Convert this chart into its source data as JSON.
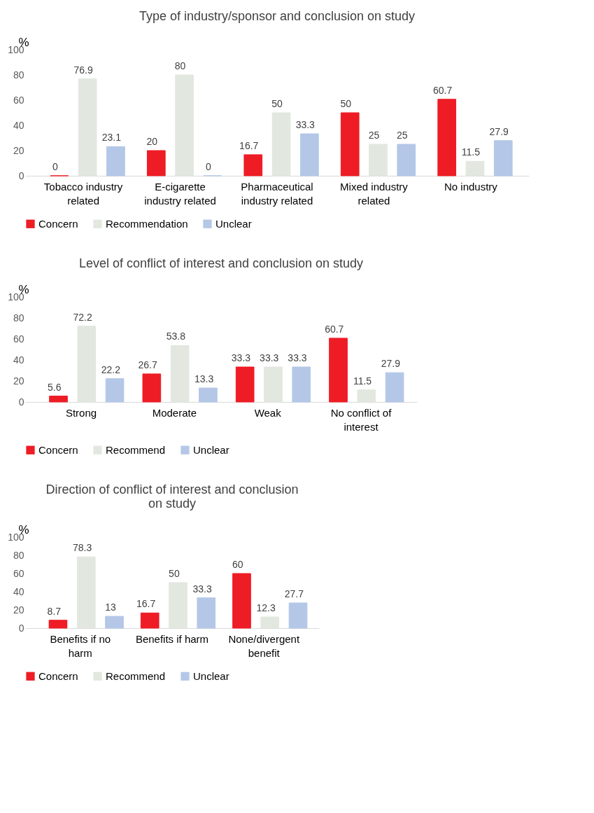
{
  "chart_data": [
    {
      "type": "bar",
      "title": "Type of industry/sponsor and conclusion on study",
      "ylabel": "%",
      "categories": [
        "Tobacco industry related",
        "E-cigarette industry related",
        "Pharmaceutical industry related",
        "Mixed industry related",
        "No industry"
      ],
      "series": [
        {
          "name": "Concern",
          "color": "#ee1c25",
          "values": [
            0,
            20,
            16.7,
            50,
            60.7
          ]
        },
        {
          "name": "Recommendation",
          "color": "#e2e8df",
          "values": [
            76.9,
            80,
            50,
            25,
            11.5
          ]
        },
        {
          "name": "Unclear",
          "color": "#b4c7e7",
          "values": [
            23.1,
            0,
            33.3,
            25,
            27.9
          ]
        }
      ],
      "ylim": [
        0,
        100
      ],
      "yticks": [
        0,
        20,
        40,
        60,
        80,
        100
      ],
      "data_labels": true,
      "legend": "bottom"
    },
    {
      "type": "bar",
      "title": "Level of conflict of interest and conclusion on study",
      "ylabel": "%",
      "categories": [
        "Strong",
        "Moderate",
        "Weak",
        "No conflict of interest"
      ],
      "series": [
        {
          "name": "Concern",
          "color": "#ee1c25",
          "values": [
            5.6,
            26.7,
            33.3,
            60.7
          ]
        },
        {
          "name": "Recommend",
          "color": "#e2e8df",
          "values": [
            72.2,
            53.8,
            33.3,
            11.5
          ]
        },
        {
          "name": "Unclear",
          "color": "#b4c7e7",
          "values": [
            22.2,
            13.3,
            33.3,
            27.9
          ]
        }
      ],
      "ylim": [
        0,
        100
      ],
      "yticks": [
        0,
        20,
        40,
        60,
        80,
        100
      ],
      "data_labels": true,
      "legend": "bottom"
    },
    {
      "type": "bar",
      "title": "Direction of conflict of interest and conclusion on study",
      "ylabel": "%",
      "categories": [
        "Benefits if no harm",
        "Benefits if harm",
        "None/divergent benefit"
      ],
      "series": [
        {
          "name": "Concern",
          "color": "#ee1c25",
          "values": [
            8.7,
            16.7,
            60
          ]
        },
        {
          "name": "Recommend",
          "color": "#e2e8df",
          "values": [
            78.3,
            50,
            12.3
          ]
        },
        {
          "name": "Unclear",
          "color": "#b4c7e7",
          "values": [
            13,
            33.3,
            27.7
          ]
        }
      ],
      "ylim": [
        0,
        100
      ],
      "yticks": [
        0,
        20,
        40,
        60,
        80,
        100
      ],
      "data_labels": true,
      "legend": "bottom"
    }
  ]
}
